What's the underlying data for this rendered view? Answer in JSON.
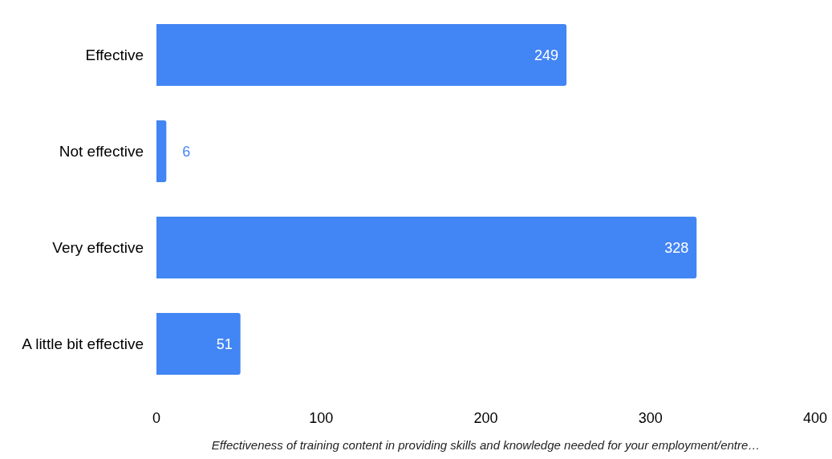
{
  "chart_data": {
    "type": "bar",
    "orientation": "horizontal",
    "categories": [
      "Effective",
      "Not effective",
      "Very effective",
      "A little bit effective"
    ],
    "values": [
      249,
      6,
      328,
      51
    ],
    "color": "#4285f4",
    "xlim": [
      0,
      400
    ],
    "xticks": [
      0,
      100,
      200,
      300,
      400
    ],
    "grid": false,
    "data_labels": true,
    "xlabel": "Effectiveness of training content in providing skills and knowledge needed for your employment/entre…"
  }
}
